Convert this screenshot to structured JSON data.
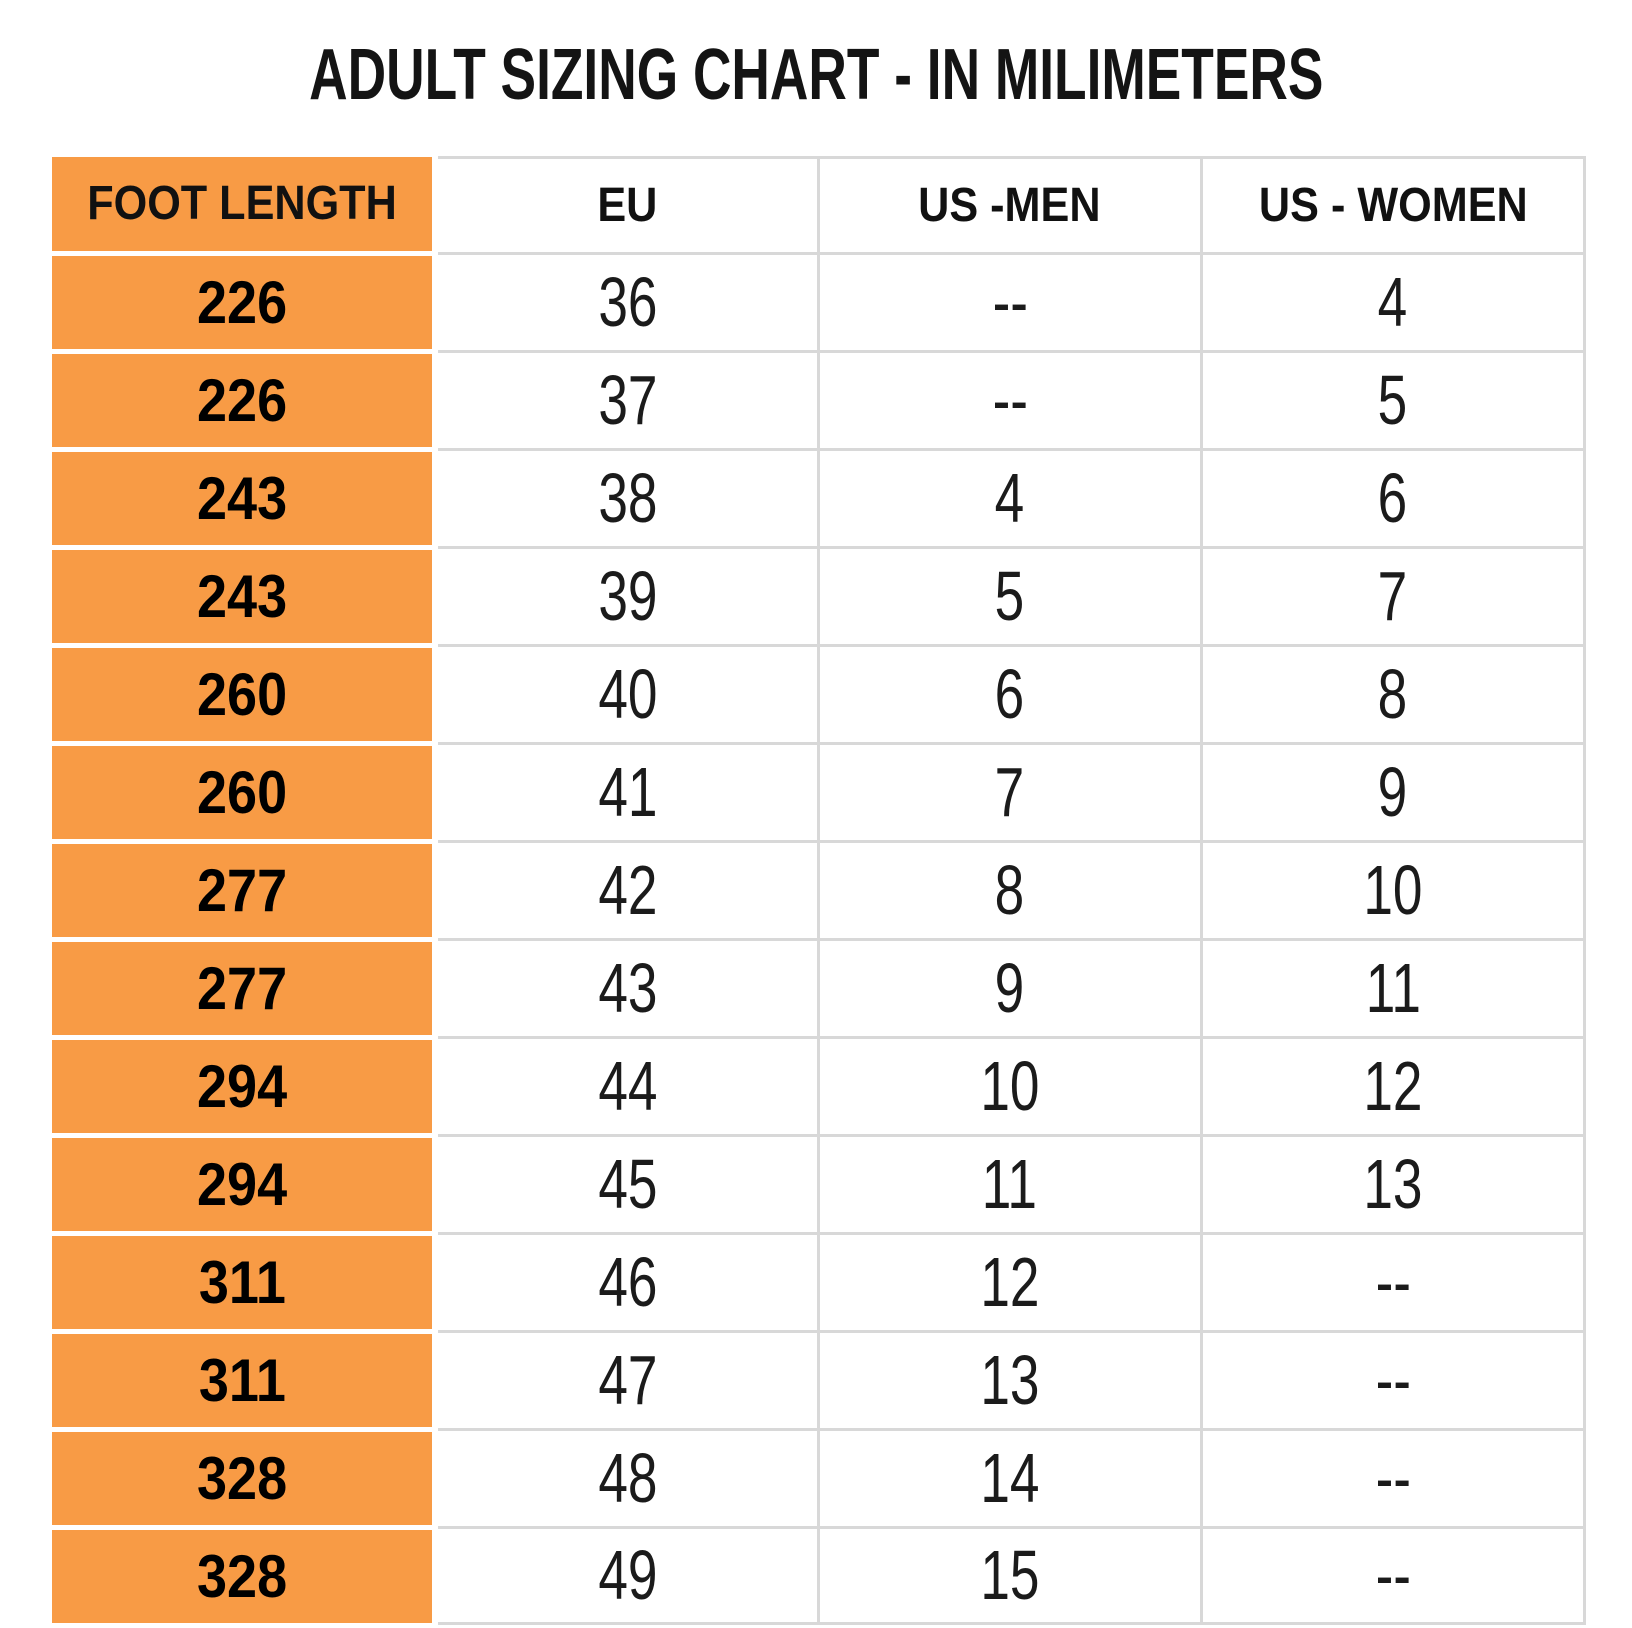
{
  "title": "ADULT SIZING CHART - IN MILIMETERS",
  "table": {
    "columns": [
      "FOOT LENGTH",
      "EU",
      "US -MEN",
      "US - WOMEN"
    ],
    "rows": [
      [
        "226",
        "36",
        "--",
        "4"
      ],
      [
        "226",
        "37",
        "--",
        "5"
      ],
      [
        "243",
        "38",
        "4",
        "6"
      ],
      [
        "243",
        "39",
        "5",
        "7"
      ],
      [
        "260",
        "40",
        "6",
        "8"
      ],
      [
        "260",
        "41",
        "7",
        "9"
      ],
      [
        "277",
        "42",
        "8",
        "10"
      ],
      [
        "277",
        "43",
        "9",
        "11"
      ],
      [
        "294",
        "44",
        "10",
        "12"
      ],
      [
        "294",
        "45",
        "11",
        "13"
      ],
      [
        "311",
        "46",
        "12",
        "--"
      ],
      [
        "311",
        "47",
        "13",
        "--"
      ],
      [
        "328",
        "48",
        "14",
        "--"
      ],
      [
        "328",
        "49",
        "15",
        "--"
      ]
    ],
    "empty_marker": "--"
  },
  "colors": {
    "accent_orange": "#F89B45",
    "grid_line": "#D8D8D8",
    "text": "#141414"
  },
  "chart_data": {
    "type": "table",
    "title": "ADULT SIZING CHART - IN MILIMETERS",
    "columns": [
      "FOOT LENGTH",
      "EU",
      "US -MEN",
      "US - WOMEN"
    ],
    "rows": [
      [
        "226",
        "36",
        null,
        "4"
      ],
      [
        "226",
        "37",
        null,
        "5"
      ],
      [
        "243",
        "38",
        "4",
        "6"
      ],
      [
        "243",
        "39",
        "5",
        "7"
      ],
      [
        "260",
        "40",
        "6",
        "8"
      ],
      [
        "260",
        "41",
        "7",
        "9"
      ],
      [
        "277",
        "42",
        "8",
        "10"
      ],
      [
        "277",
        "43",
        "9",
        "11"
      ],
      [
        "294",
        "44",
        "10",
        "12"
      ],
      [
        "294",
        "45",
        "11",
        "13"
      ],
      [
        "311",
        "46",
        "12",
        null
      ],
      [
        "311",
        "47",
        "13",
        null
      ],
      [
        "328",
        "48",
        "14",
        null
      ],
      [
        "328",
        "49",
        "15",
        null
      ]
    ],
    "layout_hints": {
      "header_column_background": "#F89B45",
      "grid": true,
      "units": "millimeters"
    }
  }
}
